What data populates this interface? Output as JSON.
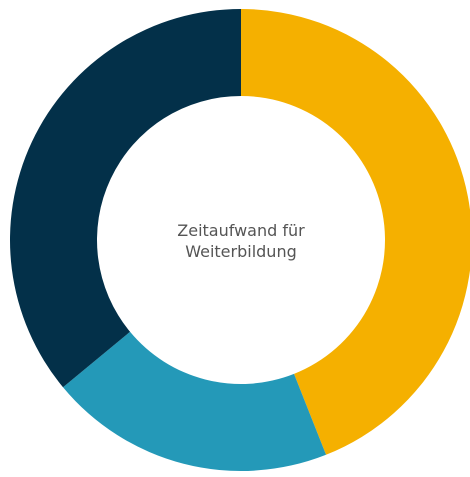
{
  "chart_data": {
    "type": "donut",
    "center_label": "Zeitaufwand für Weiterbildung",
    "values": [
      44,
      20,
      36
    ],
    "colors": [
      "#f5b000",
      "#2499b8",
      "#033049"
    ]
  }
}
